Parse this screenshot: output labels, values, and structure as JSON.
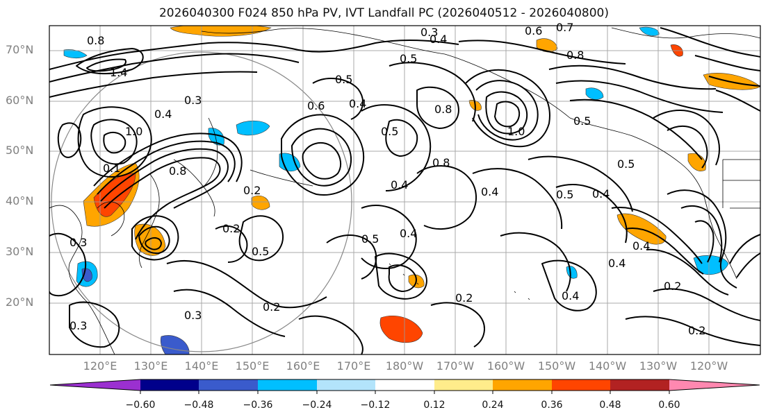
{
  "title": "2026040300 F024 850 hPa PV, IVT Landfall PC (2026040512 - 2026040800)",
  "lat_labels": [
    "70°N",
    "60°N",
    "50°N",
    "40°N",
    "30°N",
    "20°N"
  ],
  "lon_labels": [
    "120°E",
    "130°E",
    "140°E",
    "150°E",
    "160°E",
    "170°E",
    "180°W",
    "170°W",
    "160°W",
    "150°W",
    "140°W",
    "130°W",
    "120°W"
  ],
  "colorbar": {
    "colors": [
      "#9b30d0",
      "#00008b",
      "#3a5bcc",
      "#00bfff",
      "#b3e4fb",
      "#ffffff",
      "#ffec8b",
      "#ffa500",
      "#ff4500",
      "#b22222",
      "#ff88b0"
    ],
    "tick_labels": [
      "−0.60",
      "−0.48",
      "−0.36",
      "−0.24",
      "−0.12",
      "0.12",
      "0.24",
      "0.36",
      "0.48",
      "0.60"
    ]
  },
  "contour_labels": [
    "0.8",
    "1.4",
    "0.4",
    "0.3",
    "0.5",
    "1.0",
    "0.2",
    "0.6",
    "0.7",
    "0.1",
    "0.8",
    "0.4",
    "0.5",
    "0.3",
    "0.2",
    "0.4",
    "0.5",
    "0.4",
    "0.2",
    "0.3",
    "0.4",
    "0.5",
    "0.4",
    "0.2",
    "0.2",
    "0.3",
    "0.4",
    "0.5",
    "0.8",
    "0.4",
    "0.5",
    "0.2",
    "0.3",
    "0.4",
    "0.8",
    "0.5",
    "0.4",
    "0.5",
    "0.6",
    "0.8",
    "1.0"
  ],
  "shaded_regions": [
    {
      "color": "#ffa500"
    },
    {
      "color": "#ff4500"
    },
    {
      "color": "#00bfff"
    },
    {
      "color": "#3a5bcc"
    },
    {
      "color": "#ffa500"
    },
    {
      "color": "#00bfff"
    },
    {
      "color": "#ffa500"
    },
    {
      "color": "#00bfff"
    },
    {
      "color": "#ff4500"
    },
    {
      "color": "#ffa500"
    },
    {
      "color": "#00bfff"
    },
    {
      "color": "#ffa500"
    },
    {
      "color": "#00bfff"
    },
    {
      "color": "#ffa500"
    },
    {
      "color": "#00bfff"
    },
    {
      "color": "#ffa500"
    },
    {
      "color": "#3a5bcc"
    },
    {
      "color": "#ffa500"
    },
    {
      "color": "#00bfff"
    },
    {
      "color": "#ffa500"
    },
    {
      "color": "#ff4500"
    },
    {
      "color": "#00bfff"
    },
    {
      "color": "#ffa500"
    },
    {
      "color": "#00bfff"
    }
  ]
}
